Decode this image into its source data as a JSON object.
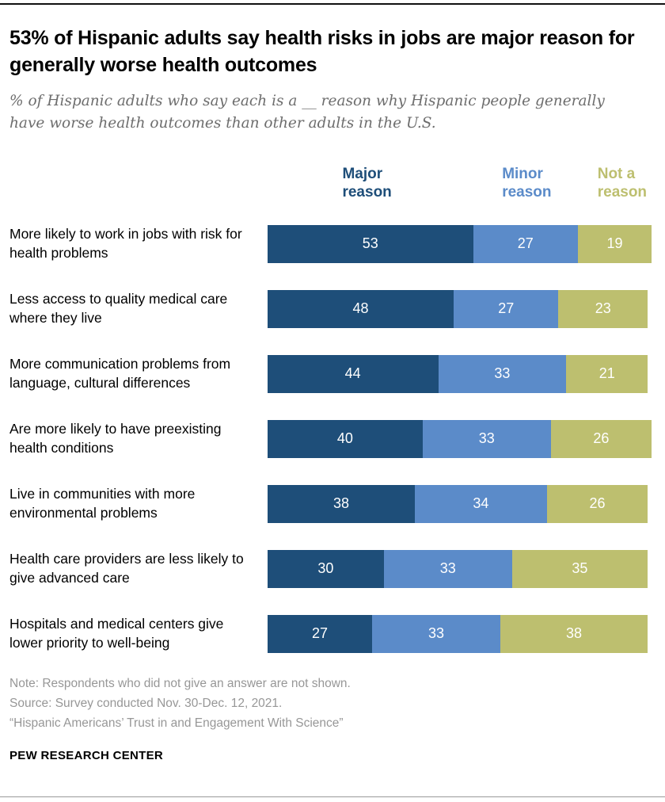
{
  "header": {
    "title": "53% of Hispanic adults say health risks in jobs are major reason for generally worse health outcomes",
    "subtitle": "% of Hispanic adults who say each is a __ reason why Hispanic people generally have worse health outcomes than other adults in the U.S."
  },
  "chart_data": {
    "type": "bar",
    "stacked": true,
    "orientation": "horizontal",
    "unit": "percent",
    "xlim": [
      0,
      100
    ],
    "legend_position": "top",
    "legend": [
      {
        "id": "major",
        "label": "Major reason",
        "color": "#1e4e79"
      },
      {
        "id": "minor",
        "label": "Minor reason",
        "color": "#5b8bc9"
      },
      {
        "id": "not",
        "label": "Not a reason",
        "color": "#bdbf6f"
      }
    ],
    "categories": [
      "More likely to work in jobs with risk for health problems",
      "Less access to quality medical care where they live",
      "More communication problems from language, cultural differences",
      "Are more likely to have preexisting health conditions",
      "Live in communities with more environmental problems",
      "Health care providers are less likely to give advanced care",
      "Hospitals and medical centers give lower priority to well-being"
    ],
    "series": [
      {
        "name": "Major reason",
        "values": [
          53,
          48,
          44,
          40,
          38,
          30,
          27
        ]
      },
      {
        "name": "Minor reason",
        "values": [
          27,
          27,
          33,
          33,
          34,
          33,
          33
        ]
      },
      {
        "name": "Not a reason",
        "values": [
          19,
          23,
          21,
          26,
          26,
          35,
          38
        ]
      }
    ]
  },
  "footer": {
    "note": "Note: Respondents who did not give an answer are not shown.",
    "source": "Source: Survey conducted Nov. 30-Dec. 12, 2021.",
    "citation": "“Hispanic Americans’ Trust in and Engagement With Science”",
    "brand": "PEW RESEARCH CENTER"
  }
}
